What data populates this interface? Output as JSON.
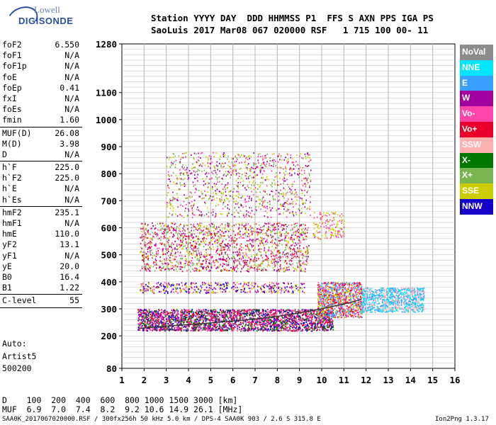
{
  "logo": {
    "line1": "Lowell",
    "line2": "DIGISONDE"
  },
  "header": {
    "row1": "Station YYYY DAY  DDD HHMMSS P1  FFS S AXN PPS IGA PS",
    "row2": "SaoLuis 2017 Mar08 067 020000 RSF   1 715 100 00- 11"
  },
  "params_group1": [
    {
      "k": "foF2",
      "v": "6.550"
    },
    {
      "k": "foF1",
      "v": "N/A"
    },
    {
      "k": "foF1p",
      "v": "N/A"
    },
    {
      "k": "foE",
      "v": "N/A"
    },
    {
      "k": "foEp",
      "v": "0.41"
    },
    {
      "k": "fxI",
      "v": "N/A"
    },
    {
      "k": "foEs",
      "v": "N/A"
    },
    {
      "k": "fmin",
      "v": "1.60"
    }
  ],
  "params_group2": [
    {
      "k": "MUF(D)",
      "v": "26.08"
    },
    {
      "k": "M(D)",
      "v": "3.98"
    },
    {
      "k": "D",
      "v": "N/A"
    }
  ],
  "params_group3": [
    {
      "k": "h`F",
      "v": "225.0"
    },
    {
      "k": "h`F2",
      "v": "225.0"
    },
    {
      "k": "h`E",
      "v": "N/A"
    },
    {
      "k": "h`Es",
      "v": "N/A"
    }
  ],
  "params_group4": [
    {
      "k": "hmF2",
      "v": "235.1"
    },
    {
      "k": "hmF1",
      "v": "N/A"
    },
    {
      "k": "hmE",
      "v": "110.0"
    },
    {
      "k": "yF2",
      "v": "13.1"
    },
    {
      "k": "yF1",
      "v": "N/A"
    },
    {
      "k": "yE",
      "v": "20.0"
    },
    {
      "k": "B0",
      "v": "16.4"
    },
    {
      "k": "B1",
      "v": "1.22"
    }
  ],
  "params_group5": [
    {
      "k": "C-level",
      "v": "55"
    }
  ],
  "auto": {
    "line1": "Auto:",
    "line2": "Artist5",
    "line3": "500200"
  },
  "legend": [
    {
      "label": "NoVal",
      "color": "#8c8c8c"
    },
    {
      "label": "NNE",
      "color": "#00e5ff"
    },
    {
      "label": "E",
      "color": "#3aa0ff"
    },
    {
      "label": "W",
      "color": "#a000a0"
    },
    {
      "label": "Vo-",
      "color": "#ff44aa"
    },
    {
      "label": "Vo+",
      "color": "#e8002a"
    },
    {
      "label": "SSW",
      "color": "#ffb0b0"
    },
    {
      "label": "X-",
      "color": "#007800"
    },
    {
      "label": "X+",
      "color": "#78b450"
    },
    {
      "label": "SSE",
      "color": "#cccc00"
    },
    {
      "label": "NNW",
      "color": "#1400c8"
    }
  ],
  "bottom": {
    "d_row": "D    100  200  400  600  800 1000 1500 3000 [km]",
    "muf_row": "MUF  6.9  7.0  7.4  8.2  9.2 10.6 14.9 26.1 [MHz]",
    "footer_left": "SAA0K_2017067020000.RSF / 300fx256h 50 kHz 5.0 km / DPS-4 SAA0K 903 / 2.6 S 315.8 E",
    "footer_right": "Ion2Png 1.3.17"
  },
  "chart_data": {
    "type": "scatter",
    "xlim": [
      1,
      16
    ],
    "ylim": [
      80,
      1280
    ],
    "x_ticks": [
      "1",
      "2",
      "3",
      "4",
      "5",
      "6",
      "7",
      "8",
      "9",
      "10",
      "11",
      "12",
      "13",
      "14",
      "15",
      "16"
    ],
    "y_ticks": [
      "80",
      "200",
      "300",
      "400",
      "500",
      "600",
      "700",
      "800",
      "900",
      "1000",
      "1100",
      "1280"
    ],
    "grid": true,
    "trace": [
      {
        "x": 1.8,
        "y": 228
      },
      {
        "x": 2.2,
        "y": 231
      },
      {
        "x": 3.0,
        "y": 236
      },
      {
        "x": 4.0,
        "y": 242
      },
      {
        "x": 5.0,
        "y": 248
      },
      {
        "x": 6.0,
        "y": 255
      },
      {
        "x": 7.0,
        "y": 262
      },
      {
        "x": 8.0,
        "y": 272
      },
      {
        "x": 9.0,
        "y": 285
      },
      {
        "x": 10.0,
        "y": 300
      },
      {
        "x": 11.0,
        "y": 318
      },
      {
        "x": 11.8,
        "y": 335
      }
    ],
    "echo_regions": [
      {
        "x0": 1.7,
        "x1": 10.5,
        "y0": 220,
        "y1": 300,
        "colors": [
          "#e8002a",
          "#ff44aa",
          "#a000a0",
          "#1400c8",
          "#007800"
        ],
        "density": 0.9
      },
      {
        "x0": 9.8,
        "x1": 11.8,
        "y0": 270,
        "y1": 400,
        "colors": [
          "#cccc00",
          "#ff44aa",
          "#e8002a",
          "#3aa0ff"
        ],
        "density": 0.9
      },
      {
        "x0": 11.8,
        "x1": 14.6,
        "y0": 290,
        "y1": 380,
        "colors": [
          "#00e5ff",
          "#3aa0ff",
          "#ffb0b0"
        ],
        "density": 0.85
      },
      {
        "x0": 1.8,
        "x1": 9.2,
        "y0": 360,
        "y1": 400,
        "colors": [
          "#cccc00",
          "#a000a0",
          "#1400c8",
          "#ff44aa"
        ],
        "density": 0.35
      },
      {
        "x0": 1.8,
        "x1": 9.4,
        "y0": 440,
        "y1": 620,
        "colors": [
          "#cccc00",
          "#a000a0",
          "#ff44aa",
          "#e8002a",
          "#78b450"
        ],
        "density": 0.3
      },
      {
        "x0": 3.0,
        "x1": 9.5,
        "y0": 640,
        "y1": 880,
        "colors": [
          "#cccc00",
          "#a000a0",
          "#ff44aa",
          "#78b450"
        ],
        "density": 0.15
      },
      {
        "x0": 9.6,
        "x1": 11.0,
        "y0": 560,
        "y1": 660,
        "colors": [
          "#cccc00",
          "#ff44aa"
        ],
        "density": 0.25
      }
    ]
  }
}
